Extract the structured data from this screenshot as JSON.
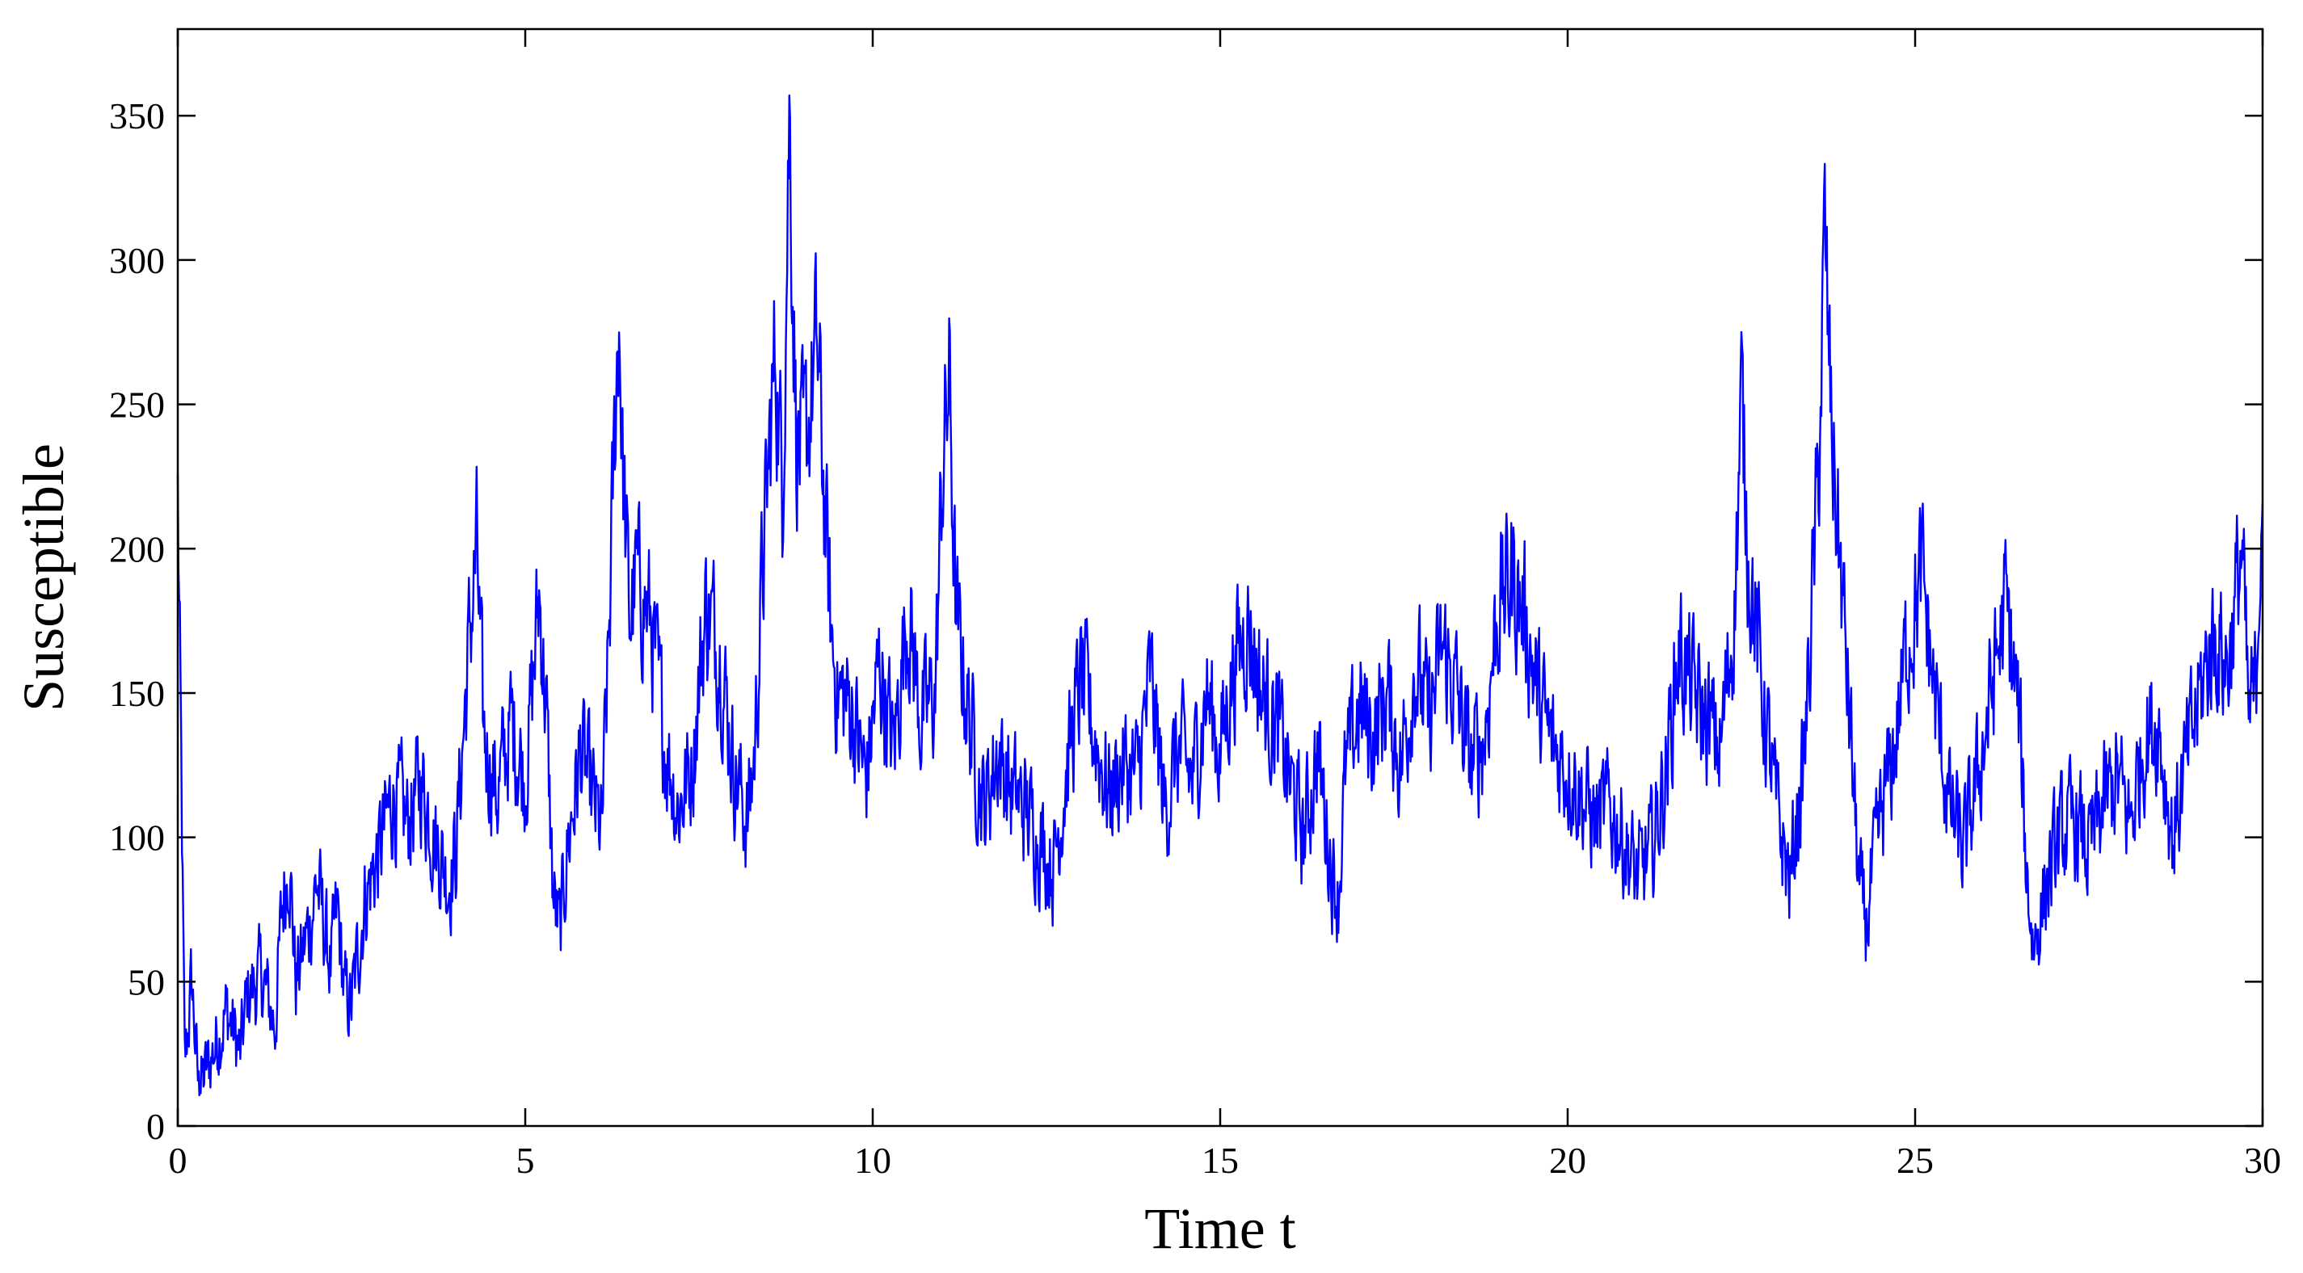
{
  "chart_data": {
    "type": "line",
    "title": "",
    "xlabel": "Time t",
    "ylabel": "Susceptible",
    "xlim": [
      0,
      30
    ],
    "ylim": [
      0,
      380
    ],
    "xticks": [
      0,
      5,
      10,
      15,
      20,
      25,
      30
    ],
    "xtick_labels": [
      "0",
      "5",
      "10",
      "15",
      "20",
      "25",
      "30"
    ],
    "yticks": [
      0,
      50,
      100,
      150,
      200,
      250,
      300,
      350
    ],
    "ytick_labels": [
      "0",
      "50",
      "100",
      "150",
      "200",
      "250",
      "300",
      "350"
    ],
    "grid": false,
    "legend": "none",
    "series": [
      {
        "color": "#0000ff",
        "anchors": [
          [
            0.0,
            218
          ],
          [
            0.05,
            120
          ],
          [
            0.1,
            20
          ],
          [
            0.2,
            50
          ],
          [
            0.3,
            12
          ],
          [
            0.5,
            25
          ],
          [
            0.7,
            40
          ],
          [
            0.9,
            25
          ],
          [
            1.0,
            45
          ],
          [
            1.2,
            52
          ],
          [
            1.4,
            35
          ],
          [
            1.5,
            75
          ],
          [
            1.6,
            95
          ],
          [
            1.7,
            50
          ],
          [
            1.9,
            70
          ],
          [
            2.0,
            85
          ],
          [
            2.2,
            55
          ],
          [
            2.3,
            75
          ],
          [
            2.4,
            45
          ],
          [
            2.5,
            42
          ],
          [
            2.7,
            80
          ],
          [
            2.9,
            95
          ],
          [
            3.1,
            115
          ],
          [
            3.3,
            105
          ],
          [
            3.5,
            120
          ],
          [
            3.7,
            100
          ],
          [
            3.9,
            85
          ],
          [
            4.0,
            95
          ],
          [
            4.2,
            170
          ],
          [
            4.3,
            200
          ],
          [
            4.4,
            135
          ],
          [
            4.6,
            115
          ],
          [
            4.8,
            140
          ],
          [
            5.0,
            120
          ],
          [
            5.1,
            150
          ],
          [
            5.2,
            185
          ],
          [
            5.3,
            145
          ],
          [
            5.4,
            80
          ],
          [
            5.5,
            66
          ],
          [
            5.6,
            95
          ],
          [
            5.8,
            130
          ],
          [
            6.0,
            110
          ],
          [
            6.1,
            100
          ],
          [
            6.2,
            165
          ],
          [
            6.3,
            250
          ],
          [
            6.35,
            285
          ],
          [
            6.4,
            230
          ],
          [
            6.5,
            175
          ],
          [
            6.6,
            190
          ],
          [
            6.8,
            175
          ],
          [
            7.0,
            135
          ],
          [
            7.2,
            110
          ],
          [
            7.4,
            125
          ],
          [
            7.6,
            180
          ],
          [
            7.8,
            165
          ],
          [
            8.0,
            125
          ],
          [
            8.2,
            105
          ],
          [
            8.3,
            130
          ],
          [
            8.4,
            185
          ],
          [
            8.6,
            270
          ],
          [
            8.7,
            220
          ],
          [
            8.8,
            352
          ],
          [
            8.9,
            240
          ],
          [
            9.0,
            230
          ],
          [
            9.2,
            270
          ],
          [
            9.4,
            170
          ],
          [
            9.5,
            150
          ],
          [
            9.7,
            145
          ],
          [
            9.9,
            120
          ],
          [
            10.1,
            160
          ],
          [
            10.3,
            130
          ],
          [
            10.5,
            180
          ],
          [
            10.7,
            140
          ],
          [
            10.9,
            150
          ],
          [
            11.0,
            225
          ],
          [
            11.1,
            258
          ],
          [
            11.2,
            175
          ],
          [
            11.4,
            140
          ],
          [
            11.6,
            110
          ],
          [
            11.8,
            130
          ],
          [
            12.0,
            115
          ],
          [
            12.2,
            110
          ],
          [
            12.4,
            100
          ],
          [
            12.6,
            90
          ],
          [
            12.8,
            125
          ],
          [
            13.0,
            155
          ],
          [
            13.2,
            135
          ],
          [
            13.4,
            115
          ],
          [
            13.6,
            125
          ],
          [
            13.8,
            120
          ],
          [
            14.0,
            155
          ],
          [
            14.2,
            110
          ],
          [
            14.4,
            130
          ],
          [
            14.6,
            120
          ],
          [
            14.8,
            150
          ],
          [
            15.0,
            130
          ],
          [
            15.2,
            160
          ],
          [
            15.4,
            175
          ],
          [
            15.6,
            150
          ],
          [
            15.8,
            140
          ],
          [
            16.0,
            120
          ],
          [
            16.2,
            100
          ],
          [
            16.4,
            130
          ],
          [
            16.6,
            90
          ],
          [
            16.7,
            80
          ],
          [
            16.8,
            120
          ],
          [
            17.0,
            145
          ],
          [
            17.2,
            135
          ],
          [
            17.4,
            150
          ],
          [
            17.6,
            125
          ],
          [
            17.8,
            160
          ],
          [
            18.0,
            140
          ],
          [
            18.2,
            165
          ],
          [
            18.4,
            150
          ],
          [
            18.6,
            125
          ],
          [
            18.8,
            135
          ],
          [
            19.0,
            180
          ],
          [
            19.2,
            190
          ],
          [
            19.4,
            175
          ],
          [
            19.6,
            145
          ],
          [
            19.8,
            130
          ],
          [
            20.0,
            125
          ],
          [
            20.2,
            115
          ],
          [
            20.4,
            105
          ],
          [
            20.6,
            110
          ],
          [
            20.8,
            100
          ],
          [
            21.0,
            85
          ],
          [
            21.2,
            95
          ],
          [
            21.4,
            120
          ],
          [
            21.6,
            165
          ],
          [
            21.8,
            150
          ],
          [
            22.0,
            140
          ],
          [
            22.2,
            130
          ],
          [
            22.4,
            180
          ],
          [
            22.5,
            250
          ],
          [
            22.6,
            200
          ],
          [
            22.8,
            150
          ],
          [
            23.0,
            110
          ],
          [
            23.2,
            85
          ],
          [
            23.4,
            125
          ],
          [
            23.6,
            220
          ],
          [
            23.7,
            305
          ],
          [
            23.8,
            240
          ],
          [
            24.0,
            165
          ],
          [
            24.2,
            80
          ],
          [
            24.3,
            70
          ],
          [
            24.5,
            105
          ],
          [
            24.7,
            130
          ],
          [
            24.9,
            170
          ],
          [
            25.1,
            190
          ],
          [
            25.3,
            145
          ],
          [
            25.5,
            110
          ],
          [
            25.7,
            95
          ],
          [
            25.9,
            120
          ],
          [
            26.1,
            150
          ],
          [
            26.3,
            180
          ],
          [
            26.5,
            140
          ],
          [
            26.6,
            90
          ],
          [
            26.7,
            62
          ],
          [
            26.9,
            85
          ],
          [
            27.1,
            100
          ],
          [
            27.3,
            105
          ],
          [
            27.5,
            95
          ],
          [
            27.7,
            110
          ],
          [
            27.9,
            120
          ],
          [
            28.1,
            105
          ],
          [
            28.3,
            135
          ],
          [
            28.5,
            140
          ],
          [
            28.7,
            100
          ],
          [
            28.9,
            125
          ],
          [
            29.1,
            150
          ],
          [
            29.3,
            170
          ],
          [
            29.5,
            160
          ],
          [
            29.7,
            200
          ],
          [
            29.8,
            140
          ],
          [
            29.9,
            150
          ],
          [
            30.0,
            235
          ]
        ],
        "noise_amplitude": 17,
        "samples": 3000
      }
    ]
  }
}
